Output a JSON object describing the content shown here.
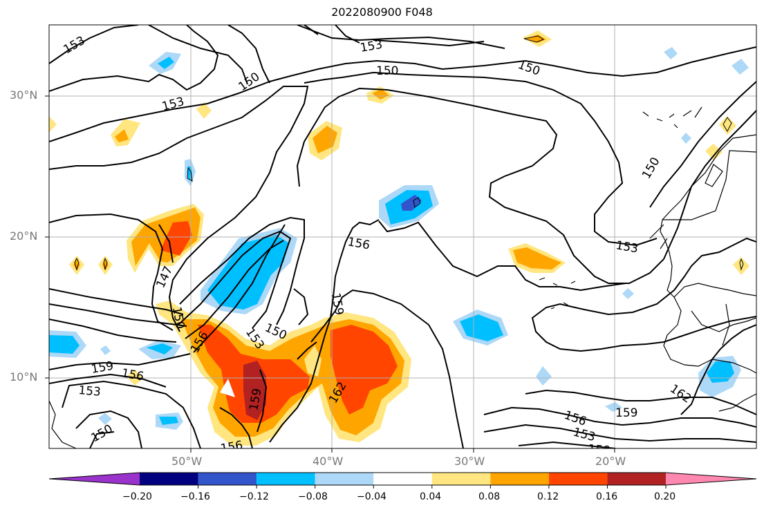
{
  "title": "2022080900 F048",
  "lat_labels": [
    {
      "text": "30°N",
      "lat": 30
    },
    {
      "text": "20°N",
      "lat": 20
    },
    {
      "text": "10°N",
      "lat": 10
    }
  ],
  "lon_labels": [
    {
      "text": "50°W",
      "lon": -50
    },
    {
      "text": "40°W",
      "lon": -40
    },
    {
      "text": "30°W",
      "lon": -30
    },
    {
      "text": "20°W",
      "lon": -20
    }
  ],
  "colorbar": {
    "colors": [
      "#9933cc",
      "#000080",
      "#3355cc",
      "#00bfff",
      "#add8f7",
      "#ffffff",
      "#ffe680",
      "#ffa500",
      "#ff4500",
      "#b22222",
      "#ff88b0"
    ],
    "ticks": [
      "−0.20",
      "−0.16",
      "−0.12",
      "−0.08",
      "−0.04",
      "0.04",
      "0.08",
      "0.12",
      "0.16",
      "0.20"
    ]
  },
  "contour_labels": [
    {
      "text": "153"
    },
    {
      "text": "153"
    },
    {
      "text": "150"
    },
    {
      "text": "150"
    },
    {
      "text": "153"
    },
    {
      "text": "150"
    },
    {
      "text": "150"
    },
    {
      "text": "153"
    },
    {
      "text": "156"
    },
    {
      "text": "147"
    },
    {
      "text": "150"
    },
    {
      "text": "156"
    },
    {
      "text": "153"
    },
    {
      "text": "150"
    },
    {
      "text": "159"
    },
    {
      "text": "162"
    },
    {
      "text": "159"
    },
    {
      "text": "159"
    },
    {
      "text": "156"
    },
    {
      "text": "153"
    },
    {
      "text": "150"
    },
    {
      "text": "156"
    },
    {
      "text": "156"
    },
    {
      "text": "153"
    },
    {
      "text": "150"
    },
    {
      "text": "159"
    },
    {
      "text": "162"
    }
  ]
}
